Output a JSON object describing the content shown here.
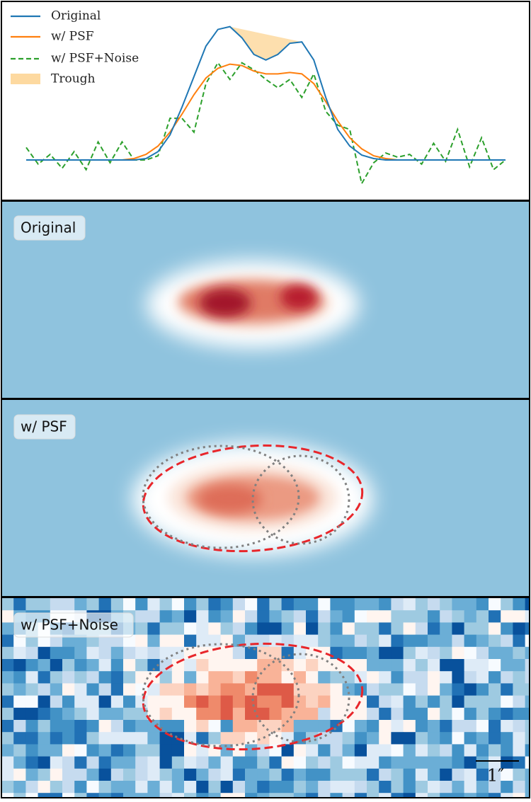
{
  "chart_data": {
    "type": "line",
    "ylim": [
      -0.25,
      1.05
    ],
    "legend": "upper left",
    "series": [
      {
        "name": "Original",
        "color": "#1f77b4",
        "dash": false,
        "values": [
          0,
          0,
          0,
          0,
          0,
          0,
          0,
          0,
          0,
          0,
          0.01,
          0.06,
          0.18,
          0.38,
          0.6,
          0.82,
          0.94,
          0.96,
          0.88,
          0.76,
          0.72,
          0.76,
          0.84,
          0.85,
          0.72,
          0.45,
          0.22,
          0.1,
          0.035,
          0.01,
          0,
          0,
          0,
          0,
          0,
          0,
          0,
          0,
          0,
          0,
          0
        ]
      },
      {
        "name": "w/ PSF",
        "color": "#ff7f0e",
        "dash": false,
        "values": [
          0,
          0,
          0,
          0,
          0,
          0,
          0,
          0,
          0,
          0.01,
          0.04,
          0.1,
          0.2,
          0.33,
          0.47,
          0.59,
          0.66,
          0.69,
          0.68,
          0.64,
          0.62,
          0.62,
          0.63,
          0.62,
          0.55,
          0.42,
          0.28,
          0.16,
          0.08,
          0.03,
          0.01,
          0,
          0,
          0,
          0,
          0,
          0,
          0,
          0,
          0,
          0
        ]
      },
      {
        "name": "w/ PSF+Noise",
        "color": "#2ca02c",
        "dash": true,
        "values": [
          0.09,
          -0.03,
          0.04,
          -0.06,
          0.06,
          -0.07,
          0.13,
          -0.02,
          0.13,
          0.0,
          0.0,
          0.03,
          0.3,
          0.3,
          0.2,
          0.55,
          0.7,
          0.58,
          0.7,
          0.65,
          0.58,
          0.52,
          0.58,
          0.45,
          0.62,
          0.35,
          0.25,
          0.22,
          -0.17,
          -0.02,
          0.05,
          0.02,
          0.04,
          -0.03,
          0.12,
          -0.01,
          0.22,
          -0.05,
          0.16,
          -0.07,
          0.0
        ]
      }
    ],
    "trough": {
      "name": "Trough",
      "color": "#fdd9a0"
    }
  },
  "panels": [
    {
      "label": "Original"
    },
    {
      "label": "w/ PSF"
    },
    {
      "label": "w/ PSF+Noise"
    }
  ],
  "scale_bar": "1″"
}
